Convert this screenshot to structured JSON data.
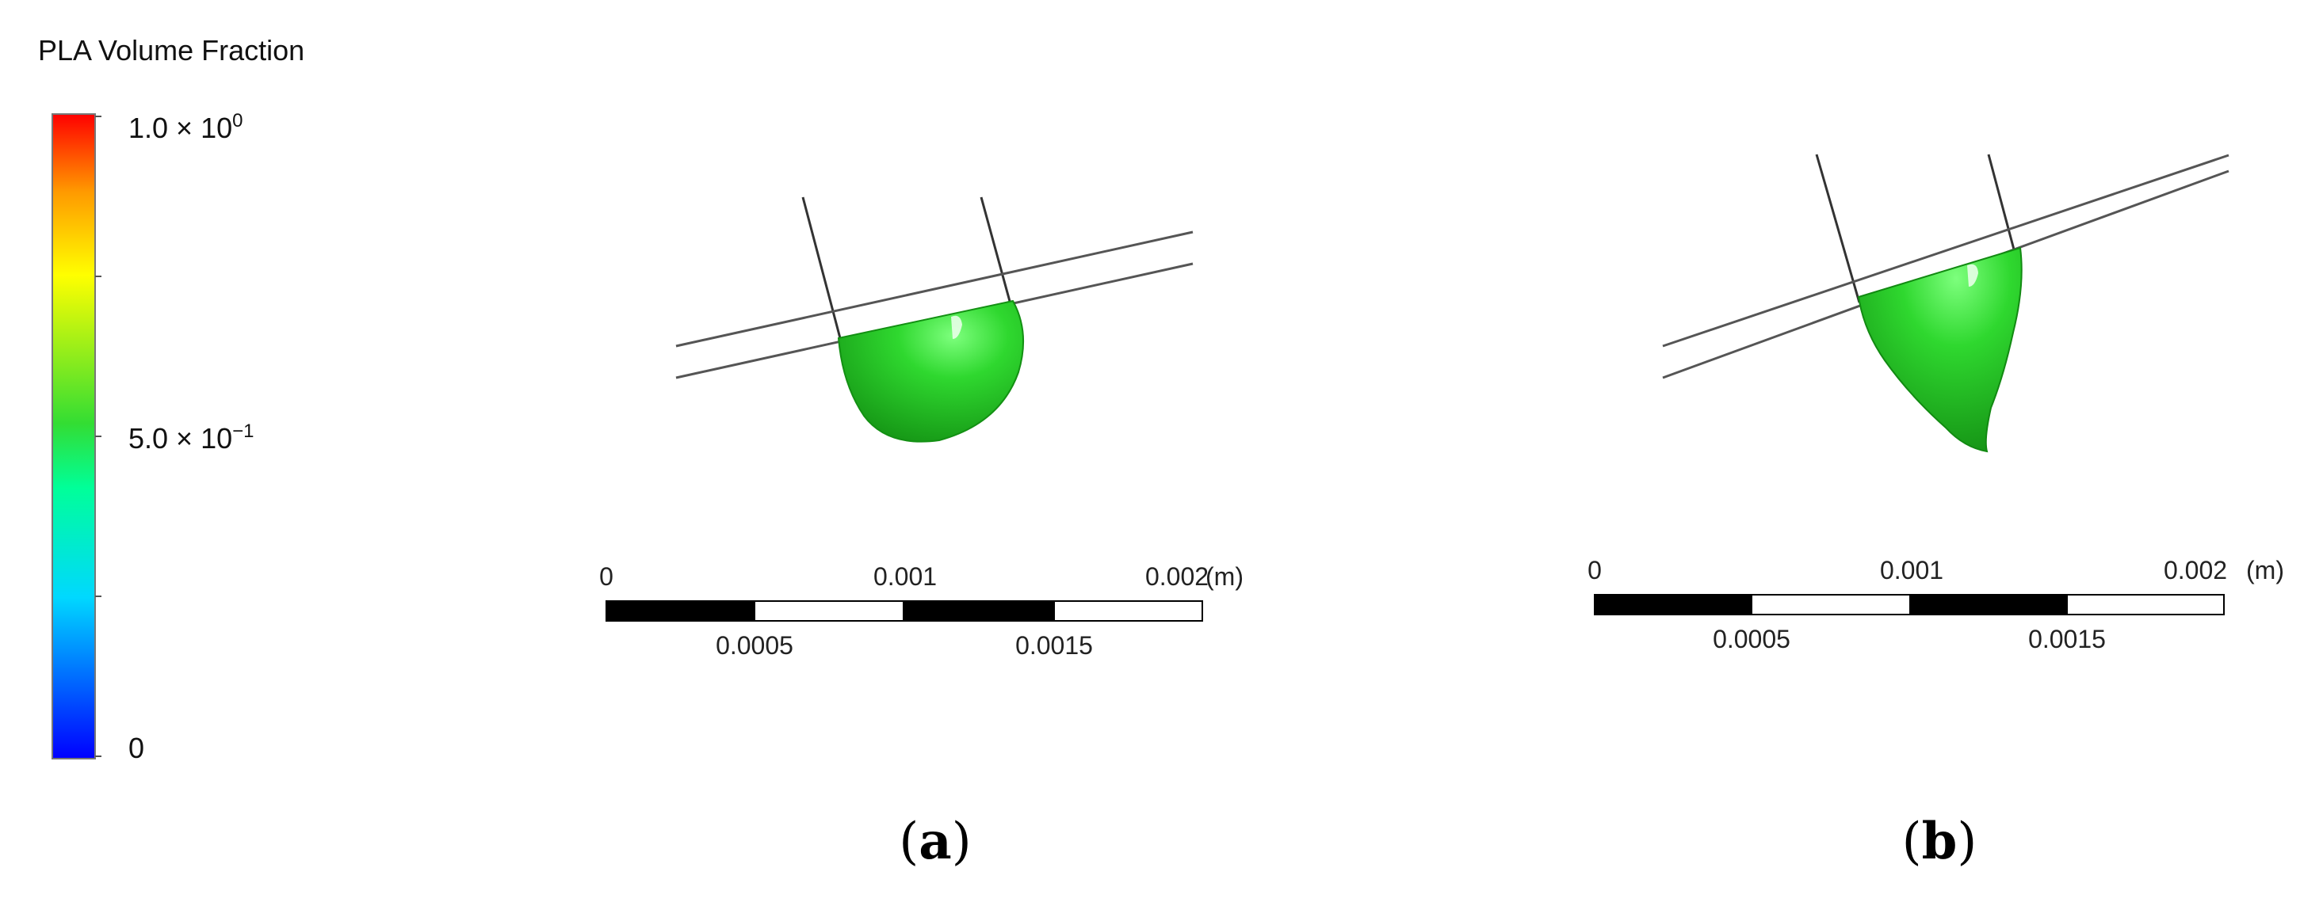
{
  "legend": {
    "title": "PLA Volume Fraction",
    "max_label": {
      "mantissa": "1.0",
      "times": "×",
      "base": "10",
      "exponent": "0"
    },
    "mid_label": {
      "mantissa": "5.0",
      "times": "×",
      "base": "10",
      "exponent": "−1"
    },
    "min_label": "0",
    "colormap": [
      "#0000ff",
      "#00ccff",
      "#00ff99",
      "#33dd33",
      "#ffff00",
      "#ff9900",
      "#ff0000"
    ]
  },
  "panels": [
    {
      "label_open": "(",
      "label_letter": "a",
      "label_close": ")",
      "scalebar": {
        "top_ticks": [
          "0",
          "0.001",
          "0.002"
        ],
        "bottom_ticks": [
          "0.0005",
          "0.0015"
        ],
        "unit": "(m)"
      }
    },
    {
      "label_open": "(",
      "label_letter": "b",
      "label_close": ")",
      "scalebar": {
        "top_ticks": [
          "0",
          "0.001",
          "0.002"
        ],
        "bottom_ticks": [
          "0.0005",
          "0.0015"
        ],
        "unit": "(m)"
      }
    }
  ],
  "colors": {
    "droplet_green": "#22cc22",
    "droplet_dark": "#138f13",
    "nozzle_line": "#333333",
    "scalebar_black": "#000000"
  }
}
